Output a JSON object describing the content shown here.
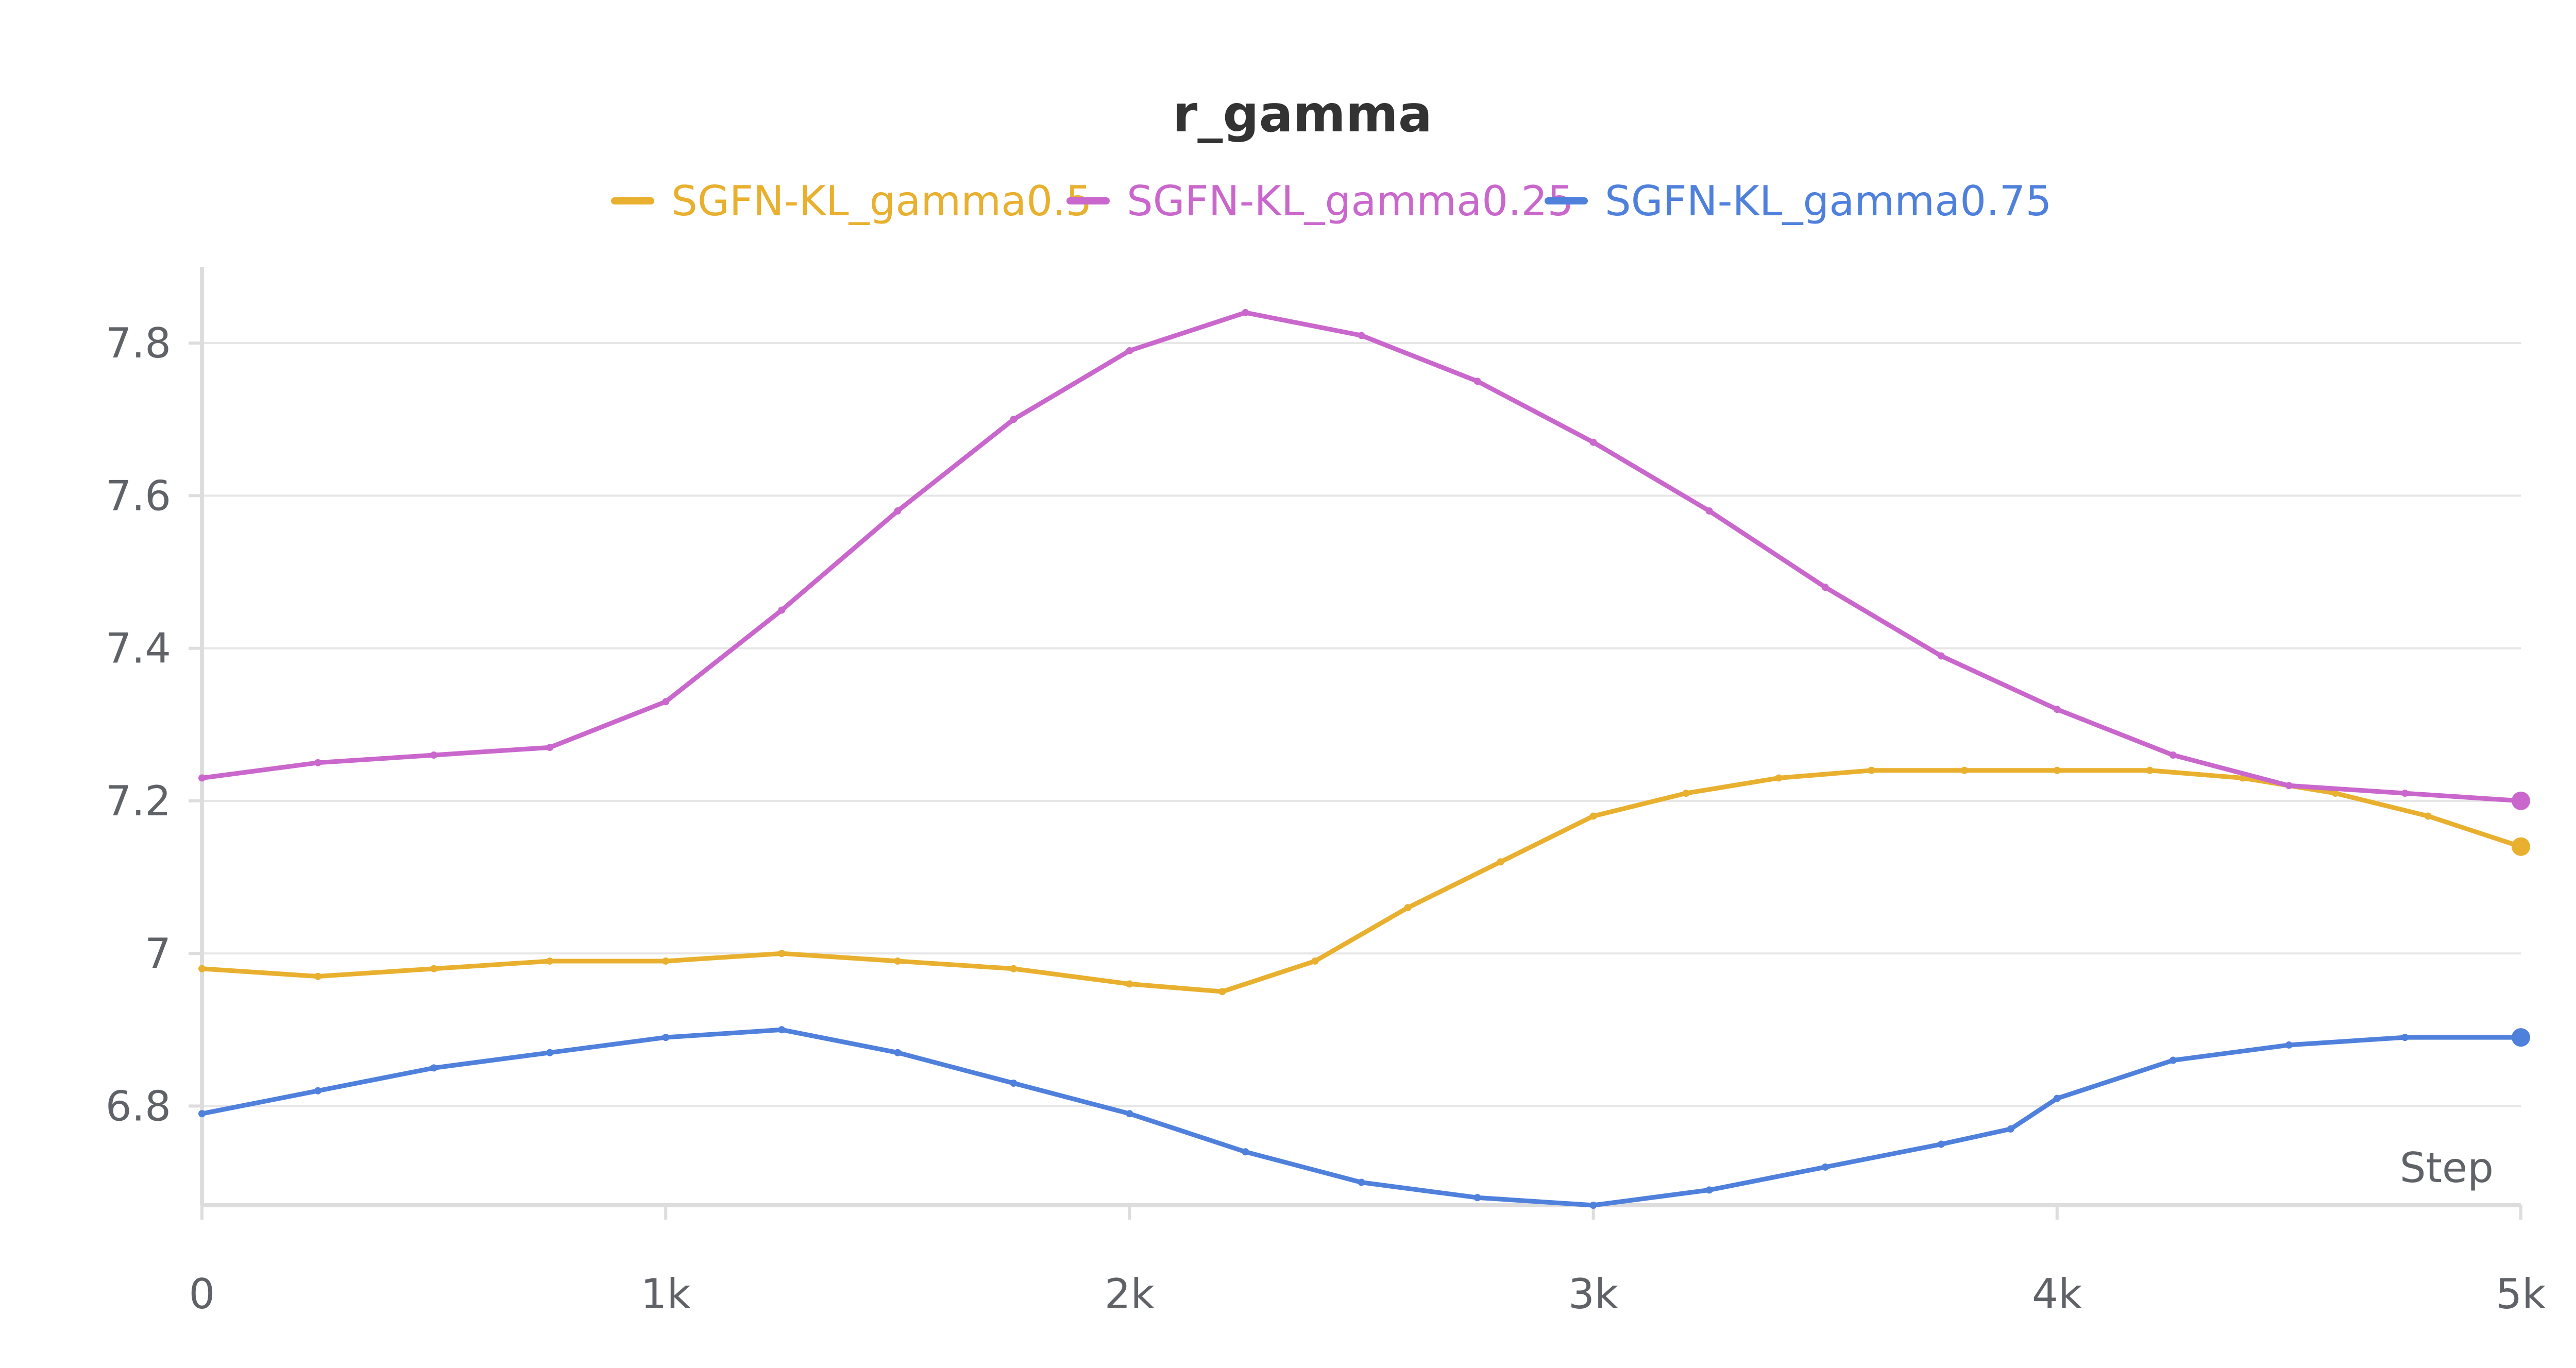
{
  "chart_data": {
    "type": "line",
    "title": "r_gamma",
    "xlabel": "Step",
    "ylabel": "",
    "xlim": [
      0,
      5000
    ],
    "ylim": [
      6.67,
      7.9
    ],
    "x_ticks": [
      0,
      1000,
      2000,
      3000,
      4000,
      5000
    ],
    "x_tick_labels": [
      "0",
      "1k",
      "2k",
      "3k",
      "4k",
      "5k"
    ],
    "y_ticks": [
      6.8,
      7.0,
      7.2,
      7.4,
      7.6,
      7.8
    ],
    "y_tick_labels": [
      "6.8",
      "7",
      "7.2",
      "7.4",
      "7.6",
      "7.8"
    ],
    "grid": true,
    "legend_position": "top-center",
    "series": [
      {
        "name": "SGFN-KL_gamma0.5",
        "color": "#e8b02e",
        "x": [
          0,
          250,
          500,
          750,
          1000,
          1250,
          1500,
          1750,
          2000,
          2200,
          2400,
          2600,
          2800,
          3000,
          3200,
          3400,
          3600,
          3800,
          4000,
          4200,
          4400,
          4600,
          4800,
          5000
        ],
        "y": [
          6.98,
          6.97,
          6.98,
          6.99,
          6.99,
          7.0,
          6.99,
          6.98,
          6.96,
          6.95,
          6.99,
          7.06,
          7.12,
          7.18,
          7.21,
          7.23,
          7.24,
          7.24,
          7.24,
          7.24,
          7.23,
          7.21,
          7.18,
          7.14
        ]
      },
      {
        "name": "SGFN-KL_gamma0.25",
        "color": "#c967cc",
        "x": [
          0,
          250,
          500,
          750,
          1000,
          1250,
          1500,
          1750,
          2000,
          2250,
          2500,
          2750,
          3000,
          3250,
          3500,
          3750,
          4000,
          4250,
          4500,
          4750,
          5000
        ],
        "y": [
          7.23,
          7.25,
          7.26,
          7.27,
          7.33,
          7.45,
          7.58,
          7.7,
          7.79,
          7.84,
          7.81,
          7.75,
          7.67,
          7.58,
          7.48,
          7.39,
          7.32,
          7.26,
          7.22,
          7.21,
          7.2
        ]
      },
      {
        "name": "SGFN-KL_gamma0.75",
        "color": "#4f80dc",
        "x": [
          0,
          250,
          500,
          750,
          1000,
          1250,
          1500,
          1750,
          2000,
          2250,
          2500,
          2750,
          3000,
          3250,
          3500,
          3750,
          3900,
          4000,
          4250,
          4500,
          4750,
          5000
        ],
        "y": [
          6.79,
          6.82,
          6.85,
          6.87,
          6.89,
          6.9,
          6.87,
          6.83,
          6.79,
          6.74,
          6.7,
          6.68,
          6.67,
          6.69,
          6.72,
          6.75,
          6.77,
          6.81,
          6.86,
          6.88,
          6.89,
          6.89
        ]
      }
    ]
  }
}
